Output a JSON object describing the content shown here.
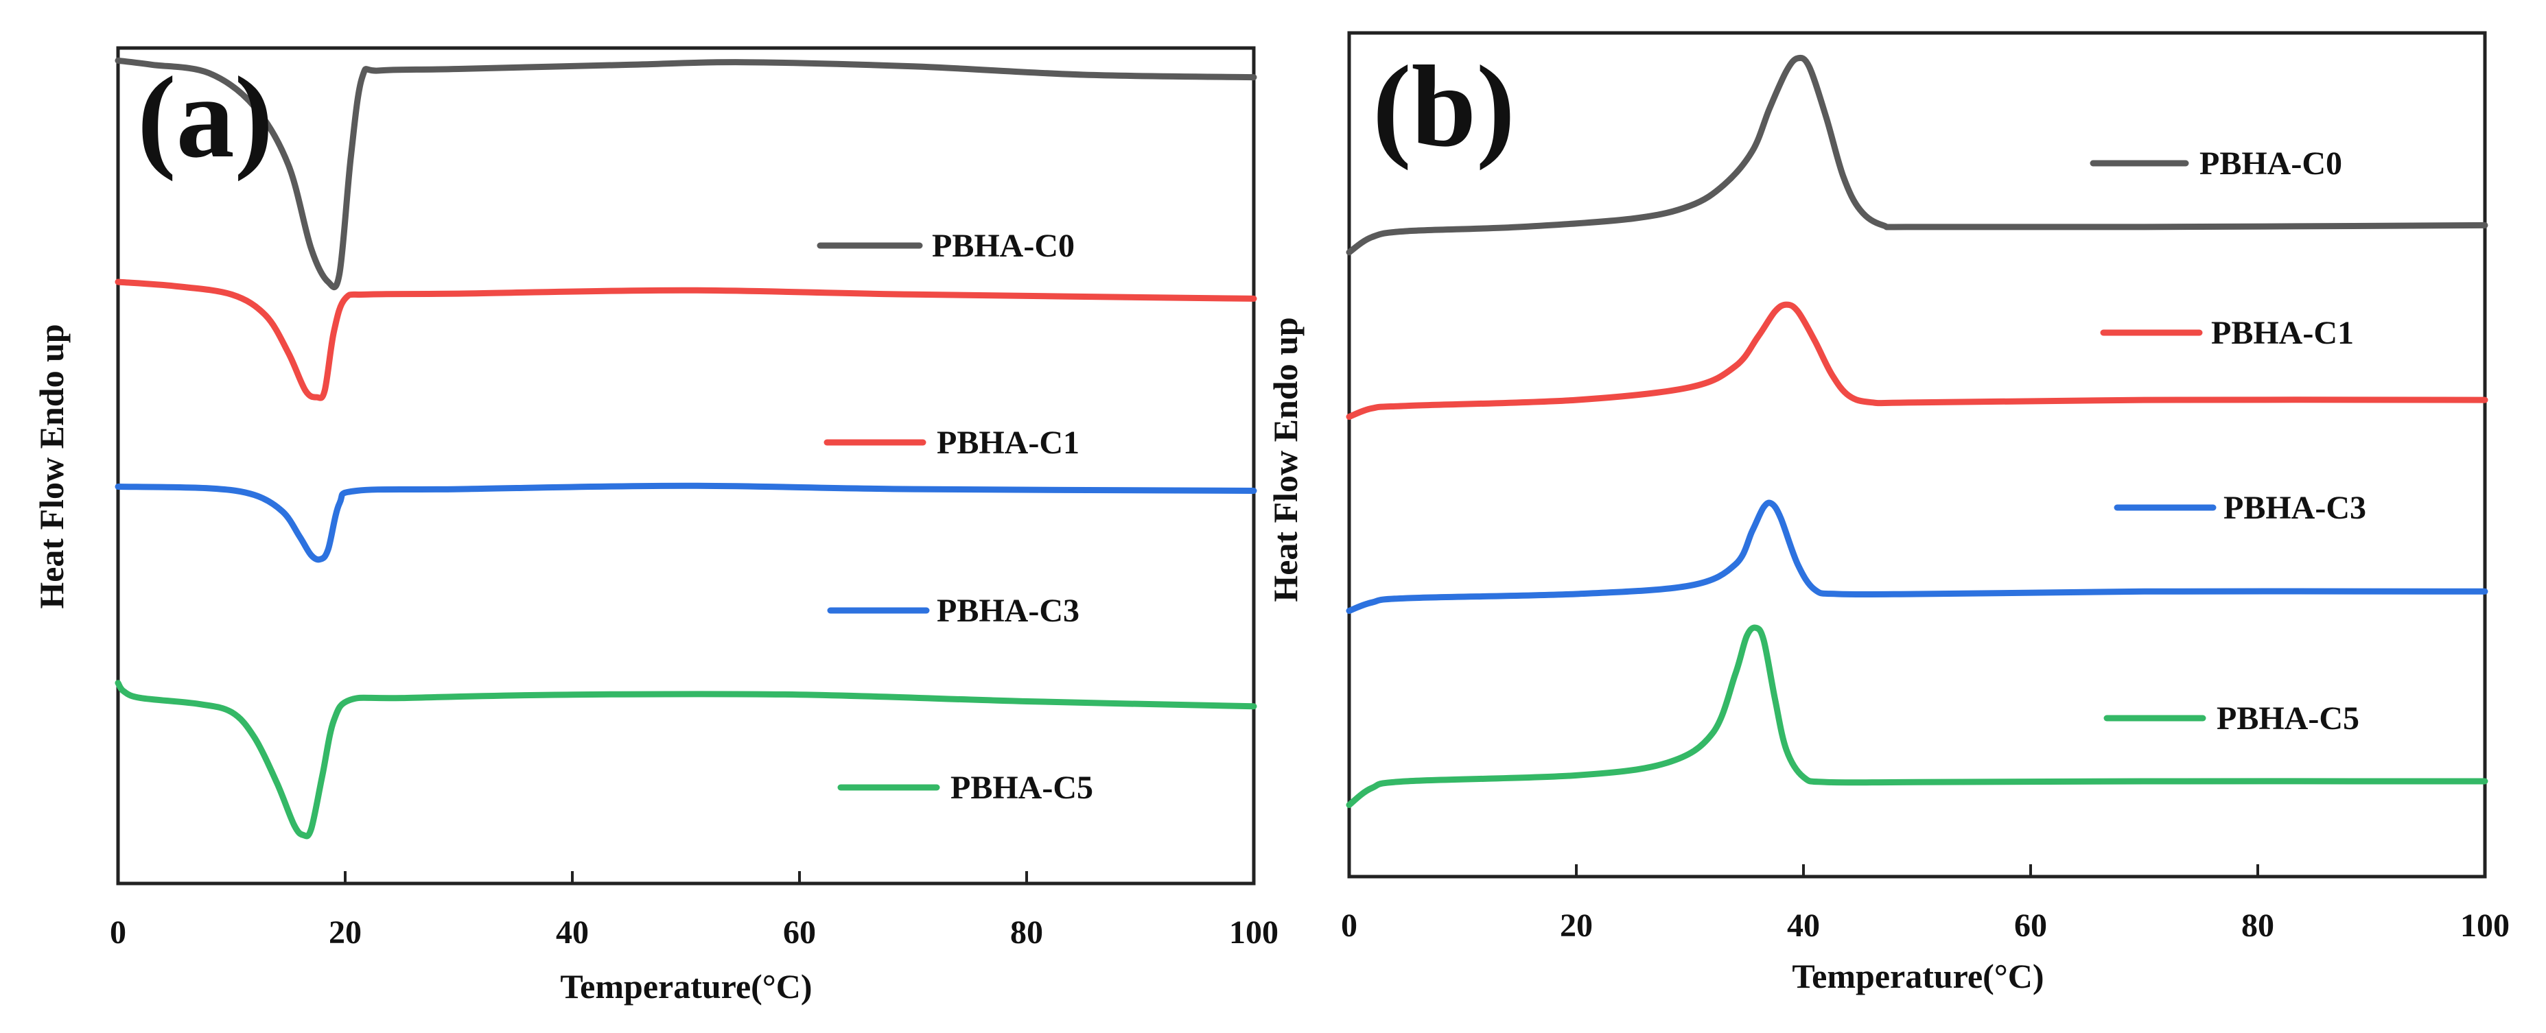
{
  "chart_data": [
    {
      "type": "line",
      "panel_label": "(a)",
      "xlabel": "Temperature(°C)",
      "ylabel": "Heat Flow Endo up",
      "xlim": [
        0,
        100
      ],
      "ylim": [
        0,
        100
      ],
      "xticks": [
        "0",
        "20",
        "40",
        "60",
        "80",
        "100"
      ],
      "y_tick_labels": false,
      "legend_position": "right, beside each curve",
      "series": [
        {
          "name": "PBHA-C0",
          "color": "#5a5a5a",
          "x": [
            0,
            3,
            8,
            12,
            15,
            17,
            18.5,
            19.5,
            20.5,
            21.5,
            23,
            30,
            45,
            55,
            70,
            85,
            100
          ],
          "y": [
            98.5,
            98,
            97,
            93,
            86,
            76,
            72,
            73,
            87,
            96.5,
            97.3,
            97.5,
            98,
            98.3,
            97.8,
            96.8,
            96.5
          ]
        },
        {
          "name": "PBHA-C1",
          "color": "#f04a45",
          "x": [
            0,
            5,
            10,
            13,
            15,
            16.5,
            17.5,
            18.2,
            19,
            20,
            22,
            30,
            50,
            70,
            100
          ],
          "y": [
            72,
            71.5,
            70.5,
            68,
            63.5,
            59,
            58.2,
            59,
            66,
            70,
            70.5,
            70.6,
            71,
            70.5,
            70
          ]
        },
        {
          "name": "PBHA-C3",
          "color": "#2d72df",
          "x": [
            0,
            8,
            12,
            14.5,
            16,
            17,
            17.8,
            18.5,
            19.5,
            21,
            30,
            50,
            70,
            100
          ],
          "y": [
            47.5,
            47.3,
            46.5,
            44.5,
            41.5,
            39.3,
            38.8,
            40,
            45.5,
            47,
            47.2,
            47.6,
            47.2,
            47
          ]
        },
        {
          "name": "PBHA-C5",
          "color": "#34b866",
          "x": [
            0,
            0.5,
            2,
            7,
            10,
            12,
            14,
            15.5,
            16.3,
            17,
            18,
            19,
            20.5,
            25,
            40,
            60,
            80,
            100
          ],
          "y": [
            24,
            23,
            22.2,
            21.5,
            20.5,
            17.5,
            12,
            7,
            5.8,
            6.5,
            13,
            19.5,
            22,
            22.2,
            22.6,
            22.6,
            21.8,
            21.2
          ]
        }
      ]
    },
    {
      "type": "line",
      "panel_label": "(b)",
      "xlabel": "Temperature(°C)",
      "ylabel": "Heat Flow Endo up",
      "xlim": [
        0,
        100
      ],
      "ylim": [
        0,
        100
      ],
      "xticks": [
        "0",
        "20",
        "40",
        "60",
        "80",
        "100"
      ],
      "y_tick_labels": false,
      "legend_position": "right, beside each curve",
      "series": [
        {
          "name": "PBHA-C0",
          "color": "#5a5a5a",
          "x": [
            0,
            2,
            5,
            15,
            25,
            30,
            33,
            35.5,
            37,
            38.5,
            39.5,
            40.5,
            42,
            43.5,
            45,
            47,
            50,
            70,
            100
          ],
          "y": [
            74,
            75.8,
            76.5,
            77,
            78,
            79.5,
            82,
            86,
            91,
            95.5,
            97,
            96,
            90,
            83,
            79,
            77.2,
            77,
            77,
            77.2
          ]
        },
        {
          "name": "PBHA-C1",
          "color": "#f04a45",
          "x": [
            0,
            2,
            5,
            20,
            30,
            34,
            36,
            37.5,
            38.5,
            39.5,
            41,
            42.5,
            44,
            46,
            50,
            70,
            100
          ],
          "y": [
            54.5,
            55.5,
            55.8,
            56.5,
            58,
            60.5,
            64,
            67,
            67.8,
            67,
            63.5,
            59.5,
            57,
            56.2,
            56.2,
            56.5,
            56.5
          ]
        },
        {
          "name": "PBHA-C3",
          "color": "#2d72df",
          "x": [
            0,
            2,
            5,
            20,
            30,
            34,
            35.5,
            36.5,
            37.2,
            38,
            39.5,
            41,
            43,
            50,
            70,
            100
          ],
          "y": [
            31.5,
            32.5,
            33,
            33.5,
            34.5,
            37,
            41,
            43.8,
            44.2,
            42.5,
            37,
            34,
            33.5,
            33.5,
            33.8,
            33.8
          ]
        },
        {
          "name": "PBHA-C5",
          "color": "#34b866",
          "x": [
            0,
            2,
            5,
            20,
            28,
            32,
            34,
            35,
            35.8,
            36.5,
            37.5,
            38.5,
            40,
            42,
            50,
            70,
            100
          ],
          "y": [
            8.5,
            10.5,
            11.3,
            12,
            13.5,
            17,
            24,
            28.5,
            29.5,
            28,
            21,
            15,
            11.8,
            11.2,
            11.2,
            11.3,
            11.3
          ]
        }
      ]
    }
  ]
}
